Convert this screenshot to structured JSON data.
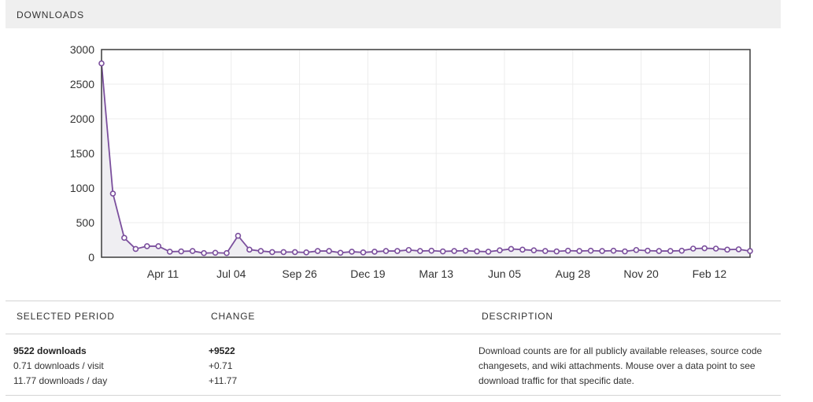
{
  "header": {
    "title": "DOWNLOADS"
  },
  "chart_data": {
    "type": "line",
    "title": "",
    "xlabel": "",
    "ylabel": "",
    "ylim": [
      0,
      3000
    ],
    "yticks": [
      "3000",
      "2500",
      "2000",
      "1500",
      "1000",
      "500",
      "0"
    ],
    "xtick_labels": [
      "Apr 11",
      "Jul 04",
      "Sep 26",
      "Dec 19",
      "Mar 13",
      "Jun 05",
      "Aug 28",
      "Nov 20",
      "Feb 12"
    ],
    "grid": true,
    "series": [
      {
        "values": [
          2800,
          920,
          280,
          120,
          160,
          160,
          80,
          85,
          90,
          60,
          65,
          60,
          310,
          110,
          90,
          75,
          75,
          75,
          70,
          90,
          90,
          65,
          80,
          70,
          80,
          90,
          90,
          105,
          90,
          95,
          85,
          90,
          95,
          85,
          80,
          100,
          120,
          110,
          100,
          90,
          85,
          95,
          90,
          95,
          90,
          95,
          85,
          105,
          95,
          90,
          90,
          95,
          125,
          130,
          125,
          110,
          115,
          90
        ]
      }
    ],
    "colors": {
      "line": "#7b4f9d",
      "fill": "#efeef2",
      "marker_fill": "#ffffff"
    }
  },
  "table": {
    "headers": {
      "period": "SELECTED PERIOD",
      "change": "CHANGE",
      "description": "DESCRIPTION"
    },
    "period": {
      "downloads": "9522 downloads",
      "per_visit": "0.71 downloads / visit",
      "per_day": "11.77 downloads / day"
    },
    "change": {
      "downloads": "+9522",
      "per_visit": "+0.71",
      "per_day": "+11.77"
    },
    "description": "Download counts are for all publicly available releases, source code changesets, and wiki attachments. Mouse over a data point to see download traffic for that specific date."
  }
}
